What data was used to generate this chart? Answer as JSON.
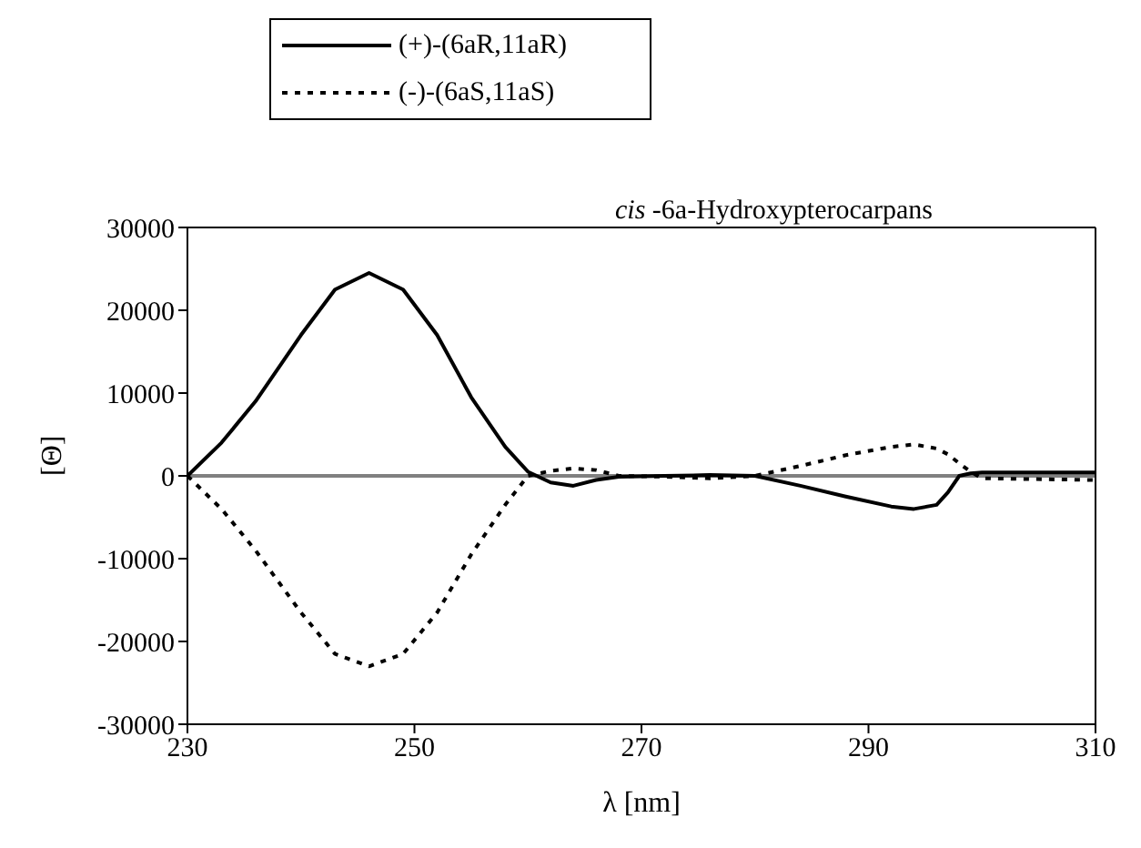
{
  "chart_data": {
    "type": "line",
    "title": "cis -6a-Hydroxypterocarpans",
    "xlabel": "λ [nm]",
    "ylabel": "[Θ]",
    "x": [
      230,
      233,
      236,
      240,
      243,
      246,
      249,
      252,
      255,
      258,
      260,
      262,
      264,
      266,
      268,
      272,
      276,
      280,
      284,
      288,
      292,
      294,
      296,
      297,
      298,
      299,
      300,
      310
    ],
    "series": [
      {
        "name": "(+)-(6aR,11aR)",
        "color": "#000000",
        "line_style": "solid",
        "values": [
          0,
          4000,
          9000,
          17000,
          22500,
          24500,
          22500,
          17000,
          9500,
          3500,
          500,
          -800,
          -1200,
          -500,
          -100,
          0,
          100,
          0,
          -1200,
          -2500,
          -3700,
          -4000,
          -3500,
          -2000,
          0,
          300,
          400,
          400
        ]
      },
      {
        "name": "(-)-(6aS,11aS)",
        "color": "#000000",
        "line_style": "dotted",
        "values": [
          0,
          -4000,
          -9000,
          -16500,
          -21500,
          -23000,
          -21500,
          -16500,
          -9500,
          -3500,
          0,
          600,
          900,
          700,
          0,
          -100,
          -300,
          0,
          1200,
          2500,
          3500,
          3800,
          3300,
          2600,
          1500,
          500,
          -300,
          -500
        ]
      }
    ],
    "xlim": [
      230,
      310
    ],
    "xticks": [
      230,
      250,
      270,
      290,
      310
    ],
    "ylim": [
      -30000,
      30000
    ],
    "yticks": [
      -30000,
      -20000,
      -10000,
      0,
      10000,
      20000,
      30000
    ],
    "ref_lines": [
      {
        "axis": "y",
        "value": 0,
        "color": "#808080"
      }
    ],
    "grid": false,
    "legend": "top left",
    "marker": "none"
  }
}
